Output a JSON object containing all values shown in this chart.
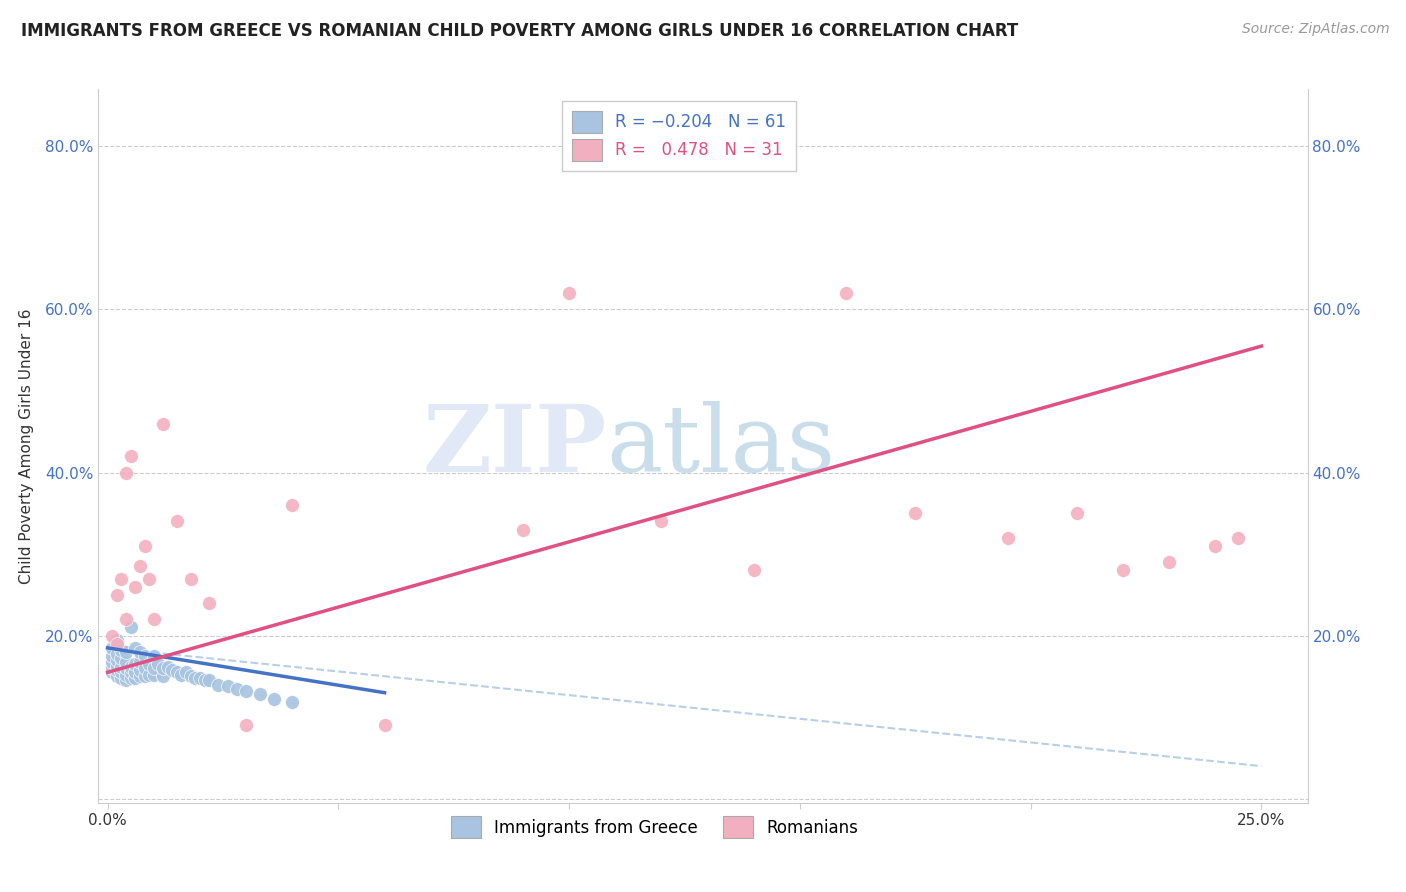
{
  "title": "IMMIGRANTS FROM GREECE VS ROMANIAN CHILD POVERTY AMONG GIRLS UNDER 16 CORRELATION CHART",
  "source": "Source: ZipAtlas.com",
  "ylabel": "Child Poverty Among Girls Under 16",
  "color_blue": "#a8c4e0",
  "color_pink": "#f2afc0",
  "color_blue_line": "#4472c4",
  "color_pink_line": "#e05080",
  "color_dashed": "#b8cfe8",
  "watermark_zip": "ZIP",
  "watermark_atlas": "atlas",
  "blue_points_x": [
    0.001,
    0.001,
    0.001,
    0.001,
    0.001,
    0.002,
    0.002,
    0.002,
    0.002,
    0.002,
    0.002,
    0.003,
    0.003,
    0.003,
    0.003,
    0.003,
    0.004,
    0.004,
    0.004,
    0.004,
    0.004,
    0.005,
    0.005,
    0.005,
    0.005,
    0.006,
    0.006,
    0.006,
    0.006,
    0.007,
    0.007,
    0.007,
    0.007,
    0.008,
    0.008,
    0.008,
    0.009,
    0.009,
    0.01,
    0.01,
    0.01,
    0.011,
    0.012,
    0.012,
    0.013,
    0.014,
    0.015,
    0.016,
    0.017,
    0.018,
    0.019,
    0.02,
    0.021,
    0.022,
    0.024,
    0.026,
    0.028,
    0.03,
    0.033,
    0.036,
    0.04
  ],
  "blue_points_y": [
    0.155,
    0.16,
    0.168,
    0.175,
    0.185,
    0.15,
    0.158,
    0.163,
    0.17,
    0.178,
    0.195,
    0.148,
    0.155,
    0.162,
    0.172,
    0.182,
    0.145,
    0.152,
    0.16,
    0.168,
    0.18,
    0.148,
    0.155,
    0.162,
    0.21,
    0.148,
    0.155,
    0.165,
    0.185,
    0.15,
    0.158,
    0.168,
    0.18,
    0.15,
    0.16,
    0.175,
    0.152,
    0.165,
    0.152,
    0.16,
    0.175,
    0.165,
    0.15,
    0.16,
    0.162,
    0.158,
    0.155,
    0.152,
    0.155,
    0.15,
    0.148,
    0.148,
    0.145,
    0.145,
    0.14,
    0.138,
    0.135,
    0.132,
    0.128,
    0.122,
    0.118
  ],
  "pink_points_x": [
    0.001,
    0.002,
    0.002,
    0.003,
    0.004,
    0.004,
    0.005,
    0.006,
    0.007,
    0.008,
    0.009,
    0.01,
    0.012,
    0.015,
    0.018,
    0.022,
    0.03,
    0.04,
    0.06,
    0.09,
    0.1,
    0.12,
    0.14,
    0.16,
    0.175,
    0.195,
    0.21,
    0.22,
    0.23,
    0.24,
    0.245
  ],
  "pink_points_y": [
    0.2,
    0.19,
    0.25,
    0.27,
    0.22,
    0.4,
    0.42,
    0.26,
    0.285,
    0.31,
    0.27,
    0.22,
    0.46,
    0.34,
    0.27,
    0.24,
    0.09,
    0.36,
    0.09,
    0.33,
    0.62,
    0.34,
    0.28,
    0.62,
    0.35,
    0.32,
    0.35,
    0.28,
    0.29,
    0.31,
    0.32
  ],
  "blue_line_x": [
    0.0,
    0.06
  ],
  "blue_line_y": [
    0.185,
    0.13
  ],
  "dash_line_x": [
    0.0,
    0.25
  ],
  "dash_line_y": [
    0.185,
    0.04
  ],
  "pink_line_x": [
    0.0,
    0.25
  ],
  "pink_line_y": [
    0.155,
    0.555
  ],
  "xlim": [
    -0.002,
    0.26
  ],
  "ylim": [
    -0.005,
    0.87
  ],
  "yticks": [
    0.0,
    0.2,
    0.4,
    0.6,
    0.8
  ],
  "ytick_labels": [
    "",
    "20.0%",
    "40.0%",
    "60.0%",
    "80.0%"
  ],
  "xticks": [
    0.0,
    0.05,
    0.1,
    0.15,
    0.2,
    0.25
  ],
  "xtick_labels": [
    "0.0%",
    "",
    "",
    "",
    "",
    "25.0%"
  ]
}
